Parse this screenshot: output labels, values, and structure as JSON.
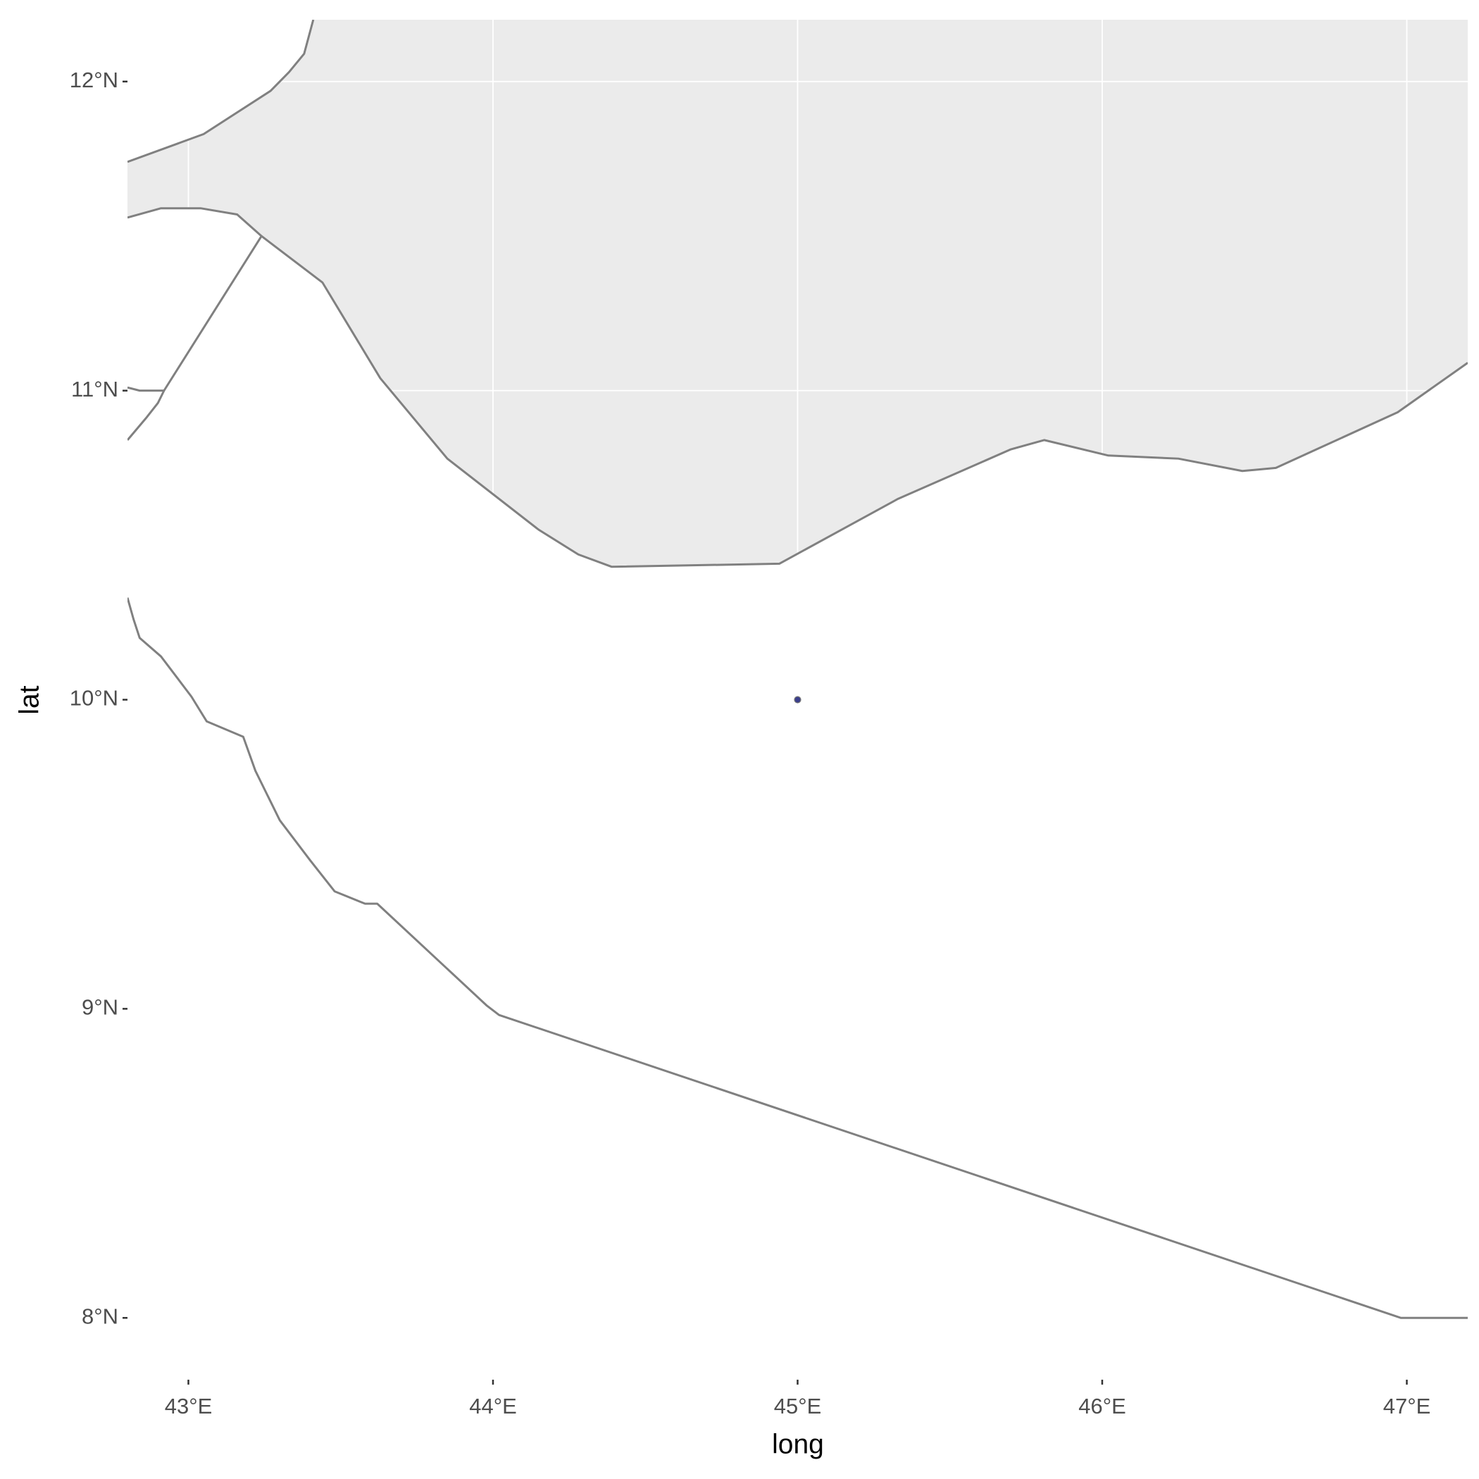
{
  "chart_data": {
    "type": "map",
    "x_label": "long",
    "y_label": "lat",
    "xlim": [
      42.8,
      47.2
    ],
    "ylim": [
      7.8,
      12.2
    ],
    "xticks": [
      {
        "value": 43,
        "label": "43°E"
      },
      {
        "value": 44,
        "label": "44°E"
      },
      {
        "value": 45,
        "label": "45°E"
      },
      {
        "value": 46,
        "label": "46°E"
      },
      {
        "value": 47,
        "label": "47°E"
      }
    ],
    "yticks": [
      {
        "value": 8,
        "label": "8°N"
      },
      {
        "value": 9,
        "label": "9°N"
      },
      {
        "value": 10,
        "label": "10°N"
      },
      {
        "value": 11,
        "label": "11°N"
      },
      {
        "value": 12,
        "label": "12°N"
      }
    ],
    "grid": true,
    "shapes": [
      {
        "kind": "polygon",
        "fill": "#ebebeb",
        "color": "#808080",
        "lon": [
          42.8,
          43.05,
          43.27,
          43.33,
          43.38,
          43.41,
          47.2,
          47.2,
          46.97,
          46.57,
          46.46,
          46.25,
          46.02,
          45.81,
          45.7,
          45.33,
          44.94,
          44.39,
          44.28,
          44.15,
          43.85,
          43.63,
          43.44,
          43.24,
          43.16,
          43.04,
          42.91,
          42.8
        ],
        "lat": [
          11.74,
          11.83,
          11.97,
          12.03,
          12.09,
          12.2,
          12.2,
          11.09,
          10.93,
          10.75,
          10.74,
          10.78,
          10.79,
          10.84,
          10.81,
          10.65,
          10.44,
          10.43,
          10.47,
          10.55,
          10.78,
          11.04,
          11.35,
          11.5,
          11.57,
          11.59,
          11.59,
          11.56
        ]
      },
      {
        "kind": "line",
        "color": "#808080",
        "lon": [
          42.8,
          42.84,
          42.92,
          43.24
        ],
        "lat": [
          11.01,
          11.0,
          11.0,
          11.5
        ]
      },
      {
        "kind": "line",
        "color": "#808080",
        "lon": [
          42.8,
          42.86,
          42.9,
          42.92
        ],
        "lat": [
          10.84,
          10.91,
          10.96,
          11.0
        ]
      },
      {
        "kind": "line",
        "color": "#808080",
        "lon": [
          42.8,
          42.82,
          42.84,
          42.91,
          43.01,
          43.06,
          43.18,
          43.22,
          43.3,
          43.4,
          43.48,
          43.58,
          43.62,
          43.98,
          44.02,
          46.92,
          46.98,
          47.2
        ],
        "lat": [
          10.33,
          10.26,
          10.2,
          10.14,
          10.01,
          9.93,
          9.88,
          9.77,
          9.61,
          9.48,
          9.38,
          9.34,
          9.34,
          9.01,
          8.98,
          8.02,
          8.0,
          8.0
        ]
      }
    ],
    "points": {
      "lon": [
        45
      ],
      "lat": [
        10
      ],
      "color": "#3b3f8c"
    }
  }
}
